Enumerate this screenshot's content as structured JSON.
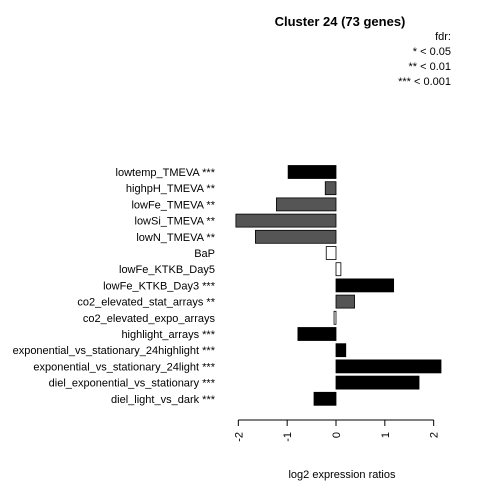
{
  "chart_data": {
    "type": "bar",
    "orientation": "horizontal",
    "title": "Cluster 24 (73 genes)",
    "xlabel": "log2 expression ratios",
    "ylabel": "",
    "xlim": [
      -2.15,
      2.15
    ],
    "xticks": [
      "-2",
      "-1",
      "0",
      "1",
      "2"
    ],
    "legend": {
      "title": "fdr:",
      "entries": [
        "* < 0.05",
        "** < 0.01",
        "*** < 0.001"
      ],
      "placement": "top-right"
    },
    "categories": [
      "lowtemp_TMEVA ***",
      "highpH_TMEVA **",
      "lowFe_TMEVA **",
      "lowSi_TMEVA **",
      "lowN_TMEVA **",
      "BaP",
      "lowFe_KTKB_Day5",
      "lowFe_KTKB_Day3 ***",
      "co2_elevated_stat_arrays **",
      "co2_elevated_expo_arrays",
      "highlight_arrays ***",
      "exponential_vs_stationary_24highlight ***",
      "exponential_vs_stationary_24light ***",
      "diel_exponential_vs_stationary ***",
      "diel_light_vs_dark ***"
    ],
    "values": [
      -0.98,
      -0.22,
      -1.22,
      -2.05,
      -1.65,
      -0.2,
      0.1,
      1.18,
      0.38,
      -0.04,
      -0.78,
      0.2,
      2.15,
      1.7,
      -0.45
    ],
    "bar_colors": [
      "#000000",
      "#555555",
      "#555555",
      "#555555",
      "#555555",
      "#ffffff",
      "#ffffff",
      "#000000",
      "#555555",
      "#ffffff",
      "#000000",
      "#000000",
      "#000000",
      "#000000",
      "#000000"
    ]
  }
}
